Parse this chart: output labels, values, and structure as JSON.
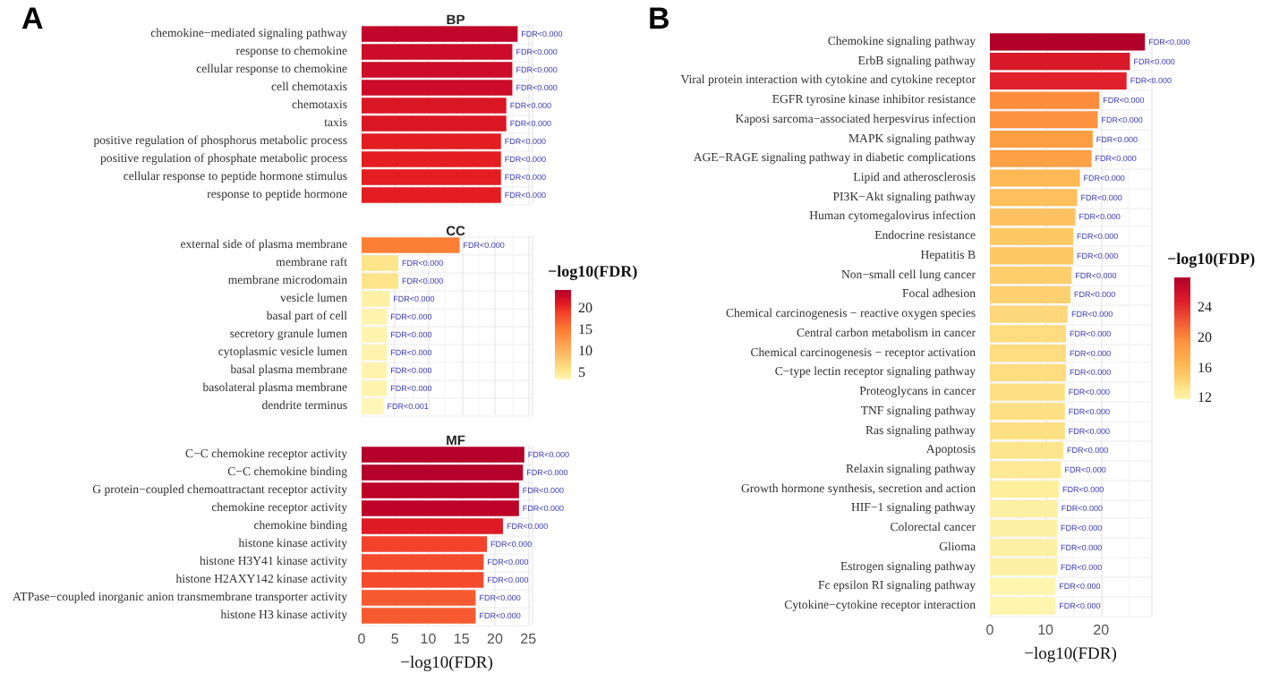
{
  "chart_data": [
    {
      "type": "bar",
      "orientation": "horizontal",
      "title": "BP",
      "annotations": [
        "A"
      ],
      "grid": true,
      "tick_labels": "y",
      "xlim": [
        0,
        25.5
      ],
      "xticks": [
        0,
        5,
        10,
        15,
        20,
        25
      ],
      "categories": [
        "chemokine−mediated signaling pathway",
        "response to chemokine",
        "cellular response to chemokine",
        "cell chemotaxis",
        "chemotaxis",
        "taxis",
        "positive regulation of phosphorus metabolic process",
        "positive regulation of phosphate metabolic process",
        "cellular response to peptide hormone stimulus",
        "response to peptide hormone"
      ],
      "values": [
        23.4,
        22.6,
        22.6,
        22.6,
        21.7,
        21.7,
        20.9,
        20.9,
        20.9,
        20.9
      ],
      "colors": [
        "#c0062a",
        "#cc0c28",
        "#cc0c28",
        "#cc0c28",
        "#db1624",
        "#db1624",
        "#e31d20",
        "#e31d20",
        "#e31d20",
        "#e31d20"
      ],
      "value_labels": [
        "FDR<0.000",
        "FDR<0.000",
        "FDR<0.000",
        "FDR<0.000",
        "FDR<0.000",
        "FDR<0.000",
        "FDR<0.000",
        "FDR<0.000",
        "FDR<0.000",
        "FDR<0.000"
      ]
    },
    {
      "type": "bar",
      "orientation": "horizontal",
      "title": "CC",
      "grid": true,
      "tick_labels": "y",
      "xlim": [
        0,
        25.5
      ],
      "xticks": [
        0,
        5,
        10,
        15,
        20,
        25
      ],
      "clabel": "−log10(FDR)",
      "clim": [
        3.4,
        24.2
      ],
      "cticks": [
        5,
        10,
        15,
        20
      ],
      "categories": [
        "external side of plasma membrane",
        "membrane raft",
        "membrane microdomain",
        "vesicle lumen",
        "basal part of cell",
        "secretory granule lumen",
        "cytoplasmic vesicle lumen",
        "basal plasma membrane",
        "basolateral plasma membrane",
        "dendrite terminus"
      ],
      "values": [
        14.7,
        5.5,
        5.5,
        4.2,
        3.8,
        3.8,
        3.8,
        3.8,
        3.8,
        3.3
      ],
      "colors": [
        "#fd7f35",
        "#fee48a",
        "#fee48a",
        "#fff0a6",
        "#fff3ae",
        "#fff3ae",
        "#fff3ae",
        "#fff3ae",
        "#fff3ae",
        "#fff6b8"
      ],
      "value_labels": [
        "FDR<0.000",
        "FDR<0.000",
        "FDR<0.000",
        "FDR<0.000",
        "FDR<0.000",
        "FDR<0.000",
        "FDR<0.000",
        "FDR<0.000",
        "FDR<0.000",
        "FDR<0.001"
      ]
    },
    {
      "type": "bar",
      "orientation": "horizontal",
      "title": "MF",
      "xlabel": "−log10(FDR)",
      "grid": true,
      "xlim": [
        0,
        25.5
      ],
      "xticks": [
        0,
        5,
        10,
        15,
        20,
        25
      ],
      "categories": [
        "C−C chemokine receptor activity",
        "C−C chemokine binding",
        "G protein−coupled chemoattractant receptor activity",
        "chemokine receptor activity",
        "chemokine binding",
        "histone kinase activity",
        "histone H3Y41 kinase activity",
        "histone H2AXY142 kinase activity",
        "ATPase−coupled inorganic anion transmembrane transporter activity",
        "histone H3 kinase activity"
      ],
      "values": [
        24.4,
        24.2,
        23.6,
        23.6,
        21.2,
        18.8,
        18.3,
        18.3,
        17.1,
        17.1
      ],
      "colors": [
        "#b4002a",
        "#b4002a",
        "#bd0428",
        "#bd0428",
        "#de1a24",
        "#f4432c",
        "#f54a2c",
        "#f54a2c",
        "#f75a30",
        "#f75a30"
      ],
      "value_labels": [
        "FDR<0.000",
        "FDR<0.000",
        "FDR<0.000",
        "FDR<0.000",
        "FDR<0.000",
        "FDR<0.000",
        "FDR<0.000",
        "FDR<0.000",
        "FDR<0.000",
        "FDR<0.000"
      ]
    },
    {
      "type": "bar",
      "orientation": "horizontal",
      "annotations": [
        "B"
      ],
      "xlabel": "−log10(FDR)",
      "grid": true,
      "xlim": [
        0,
        29
      ],
      "xticks": [
        0,
        10,
        20
      ],
      "clabel": "−log10(FDP)",
      "clim": [
        11.8,
        27.9
      ],
      "cticks": [
        12,
        16,
        20,
        24
      ],
      "categories": [
        "Chemokine signaling pathway",
        "ErbB signaling pathway",
        "Viral protein interaction with cytokine and cytokine receptor",
        "EGFR tyrosine kinase inhibitor resistance",
        "Kaposi sarcoma−associated herpesvirus infection",
        "MAPK signaling pathway",
        "AGE−RAGE signaling pathway in diabetic complications",
        "Lipid and atherosclerosis",
        "PI3K−Akt signaling pathway",
        "Human cytomegalovirus infection",
        "Endocrine resistance",
        "Hepatitis B",
        "Non−small cell lung cancer",
        "Focal adhesion",
        "Chemical carcinogenesis − reactive oxygen species",
        "Central carbon metabolism in cancer",
        "Chemical carcinogenesis − receptor activation",
        "C−type lectin receptor signaling pathway",
        "Proteoglycans in cancer",
        "TNF signaling pathway",
        "Ras signaling pathway",
        "Apoptosis",
        "Relaxin signaling pathway",
        "Growth hormone synthesis, secretion and action",
        "HIF−1 signaling pathway",
        "Colorectal cancer",
        "Glioma",
        "Estrogen signaling pathway",
        "Fc epsilon RI signaling pathway",
        "Cytokine−cytokine receptor interaction"
      ],
      "values": [
        27.9,
        25.2,
        24.6,
        19.7,
        19.4,
        18.5,
        18.3,
        16.2,
        15.7,
        15.4,
        15.0,
        15.0,
        14.7,
        14.5,
        14.0,
        13.7,
        13.7,
        13.7,
        13.5,
        13.5,
        13.5,
        13.2,
        12.8,
        12.4,
        12.2,
        12.1,
        12.1,
        12.1,
        11.8,
        11.8
      ],
      "colors": [
        "#b1002a",
        "#d7192a",
        "#e0202a",
        "#fd8d3c",
        "#fd9240",
        "#fd9e44",
        "#fda046",
        "#feb954",
        "#febf5c",
        "#fec260",
        "#fec865",
        "#fec865",
        "#fecd6c",
        "#fed070",
        "#fed77a",
        "#fedc80",
        "#fedc80",
        "#fedc80",
        "#fee085",
        "#fee085",
        "#fee085",
        "#fee48c",
        "#fee995",
        "#feee9d",
        "#fef0a2",
        "#fef1a5",
        "#fef1a5",
        "#fef1a5",
        "#fff5ae",
        "#fff5ae"
      ],
      "value_labels": [
        "FDR<0.000",
        "FDR<0.000",
        "FDR<0.000",
        "FDR<0.000",
        "FDR<0.000",
        "FDR<0.000",
        "FDR<0.000",
        "FDR<0.000",
        "FDR<0.000",
        "FDR<0.000",
        "FDR<0.000",
        "FDR<0.000",
        "FDR<0.000",
        "FDR<0.000",
        "FDR<0.000",
        "FDR<0.000",
        "FDR<0.000",
        "FDR<0.000",
        "FDR<0.000",
        "FDR<0.000",
        "FDR<0.000",
        "FDR<0.000",
        "FDR<0.000",
        "FDR<0.000",
        "FDR<0.000",
        "FDR<0.000",
        "FDR<0.000",
        "FDR<0.000",
        "FDR<0.000",
        "FDR<0.000"
      ]
    }
  ]
}
